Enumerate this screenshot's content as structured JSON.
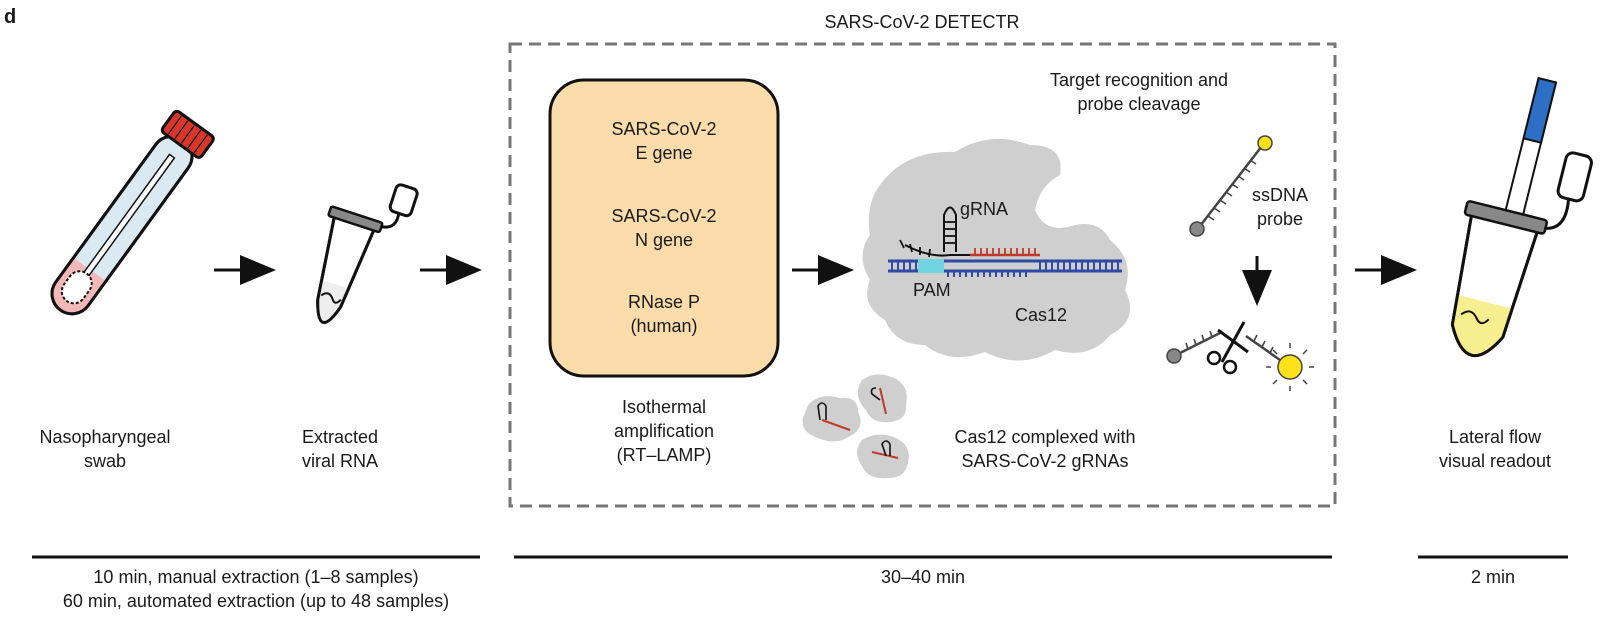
{
  "panel_letter": "d",
  "detectr_title": "SARS-CoV-2 DETECTR",
  "steps": {
    "swab": {
      "label": [
        "Nasopharyngeal",
        "swab"
      ]
    },
    "rna": {
      "label": [
        "Extracted",
        "viral RNA"
      ]
    },
    "amplification": {
      "targets": [
        [
          "SARS-CoV-2",
          "E gene"
        ],
        [
          "SARS-CoV-2",
          "N gene"
        ],
        [
          "RNase P",
          "(human)"
        ]
      ],
      "label": [
        "Isothermal",
        "amplification",
        "(RT–LAMP)"
      ]
    },
    "recognition": {
      "title": [
        "Target recognition and",
        "probe cleavage"
      ],
      "grna": "gRNA",
      "pam": "PAM",
      "cas12": "Cas12",
      "probe": [
        "ssDNA",
        "probe"
      ],
      "complex_label": [
        "Cas12 complexed with",
        "SARS-CoV-2 gRNAs"
      ]
    },
    "readout": {
      "label": [
        "Lateral flow",
        "visual readout"
      ]
    }
  },
  "timeline": [
    {
      "lines": [
        "10 min, manual extraction (1–8 samples)",
        "60 min, automated extraction (up to 48 samples)"
      ]
    },
    {
      "lines": [
        "30–40 min"
      ]
    },
    {
      "lines": [
        "2 min"
      ]
    }
  ],
  "colors": {
    "cap_red": "#d9362b",
    "tube_blue": "#dbe9f2",
    "swab_pink": "#f5b8b8",
    "amp_box": "#fbdcaa",
    "cas12_gray": "#cfcfcf",
    "dna_blue": "#2e4aa6",
    "pam_cyan": "#6fd3e0",
    "grna_red": "#c0392b",
    "fluor_yellow": "#ffe11a",
    "liquid_yellow": "#f7ee8f",
    "strip_blue": "#2d6fc4"
  }
}
